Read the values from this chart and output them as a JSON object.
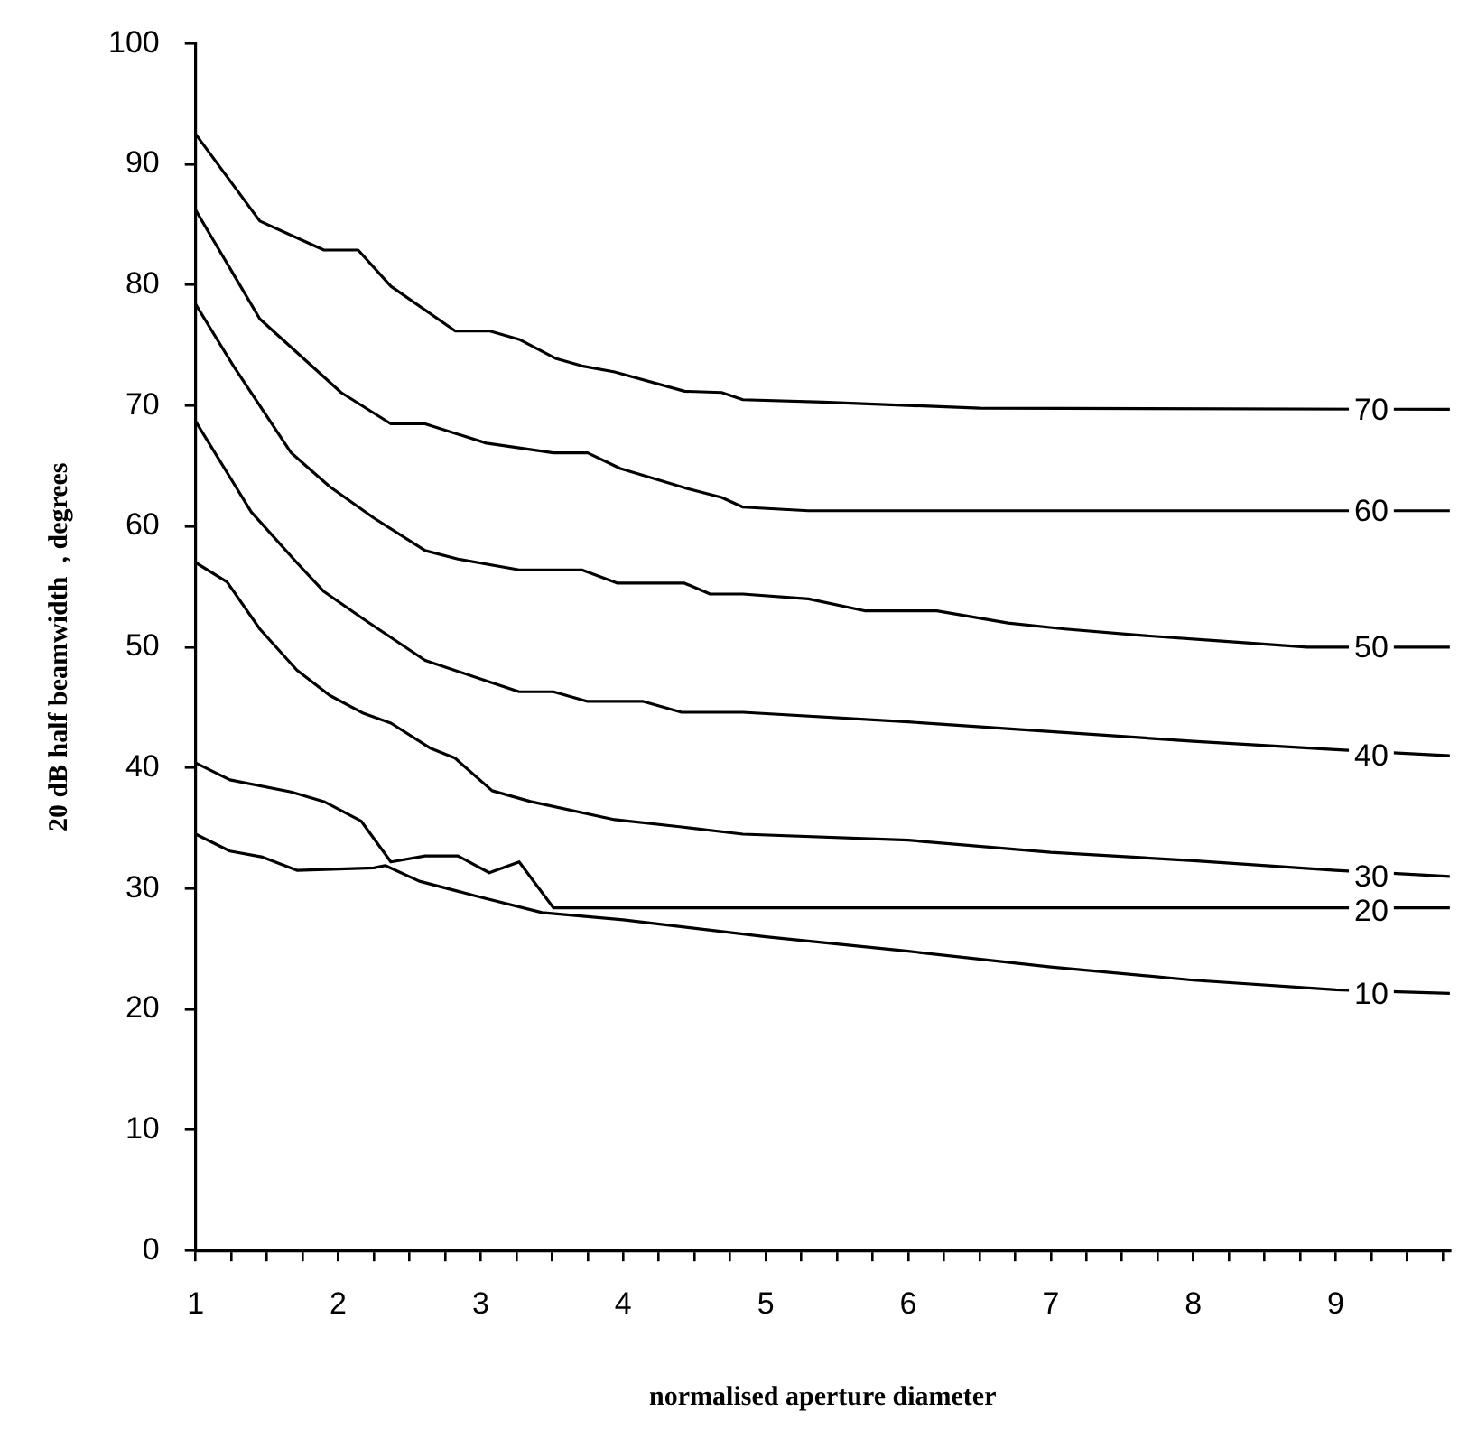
{
  "chart_data": {
    "type": "line",
    "xlabel": "normalised aperture diameter",
    "ylabel": "20 dB half beamwidth  , degrees",
    "xlim": [
      1,
      9.8
    ],
    "ylim": [
      0,
      100
    ],
    "xticks": [
      1,
      {
        "value": 1.25,
        "label": null
      },
      {
        "value": 1.5,
        "label": null
      },
      {
        "value": 1.75,
        "label": null
      },
      2,
      {
        "value": 2.25,
        "label": null
      },
      {
        "value": 2.5,
        "label": null
      },
      {
        "value": 2.75,
        "label": null
      },
      3,
      {
        "value": 3.25,
        "label": null
      },
      {
        "value": 3.5,
        "label": null
      },
      {
        "value": 3.75,
        "label": null
      },
      4,
      {
        "value": 4.25,
        "label": null
      },
      {
        "value": 4.5,
        "label": null
      },
      {
        "value": 4.75,
        "label": null
      },
      5,
      {
        "value": 5.25,
        "label": null
      },
      {
        "value": 5.5,
        "label": null
      },
      {
        "value": 5.75,
        "label": null
      },
      6,
      {
        "value": 6.25,
        "label": null
      },
      {
        "value": 6.5,
        "label": null
      },
      {
        "value": 6.75,
        "label": null
      },
      7,
      {
        "value": 7.25,
        "label": null
      },
      {
        "value": 7.5,
        "label": null
      },
      {
        "value": 7.75,
        "label": null
      },
      8,
      {
        "value": 8.25,
        "label": null
      },
      {
        "value": 8.5,
        "label": null
      },
      {
        "value": 8.75,
        "label": null
      },
      9,
      {
        "value": 9.25,
        "label": null
      },
      {
        "value": 9.5,
        "label": null
      },
      {
        "value": 9.75,
        "label": null
      }
    ],
    "yticks": [
      0,
      10,
      20,
      30,
      40,
      50,
      60,
      70,
      80,
      90,
      100
    ],
    "grid": false,
    "legend": false,
    "marker": "none",
    "line_style": "solid",
    "series": [
      {
        "name": "70",
        "color": "#000000",
        "x": [
          1,
          1.45,
          1.9,
          2.14,
          2.37,
          2.82,
          3.06,
          3.27,
          3.53,
          3.71,
          3.94,
          4.43,
          4.69,
          4.84,
          5.4,
          6.5,
          9.8
        ],
        "values": [
          92.5,
          85.3,
          82.9,
          82.9,
          79.9,
          76.2,
          76.2,
          75.5,
          73.9,
          73.3,
          72.8,
          71.2,
          71.1,
          70.5,
          70.3,
          69.8,
          69.7
        ]
      },
      {
        "name": "60",
        "color": "#000000",
        "x": [
          1,
          1.45,
          2.02,
          2.37,
          2.61,
          3.04,
          3.51,
          3.75,
          3.98,
          4.43,
          4.69,
          4.84,
          5.3,
          9.8
        ],
        "values": [
          86.2,
          77.2,
          71.1,
          68.5,
          68.5,
          66.9,
          66.1,
          66.1,
          64.8,
          63.2,
          62.4,
          61.6,
          61.3,
          61.3
        ]
      },
      {
        "name": "50",
        "color": "#000000",
        "x": [
          1,
          1.27,
          1.67,
          1.94,
          2.25,
          2.61,
          2.84,
          3.27,
          3.71,
          3.96,
          4.43,
          4.61,
          4.84,
          5.3,
          5.7,
          6.2,
          6.7,
          7.1,
          7.6,
          8.2,
          8.8,
          9.8
        ],
        "values": [
          78.4,
          73.2,
          66.1,
          63.3,
          60.7,
          58,
          57.3,
          56.4,
          56.4,
          55.3,
          55.3,
          54.4,
          54.4,
          54,
          53,
          53,
          52,
          51.5,
          51,
          50.5,
          50,
          50
        ]
      },
      {
        "name": "40",
        "color": "#000000",
        "x": [
          1,
          1.39,
          1.71,
          1.9,
          2.18,
          2.61,
          3.04,
          3.27,
          3.51,
          3.75,
          4.14,
          4.41,
          4.84,
          6,
          7,
          8,
          9,
          9.8
        ],
        "values": [
          68.7,
          61.2,
          57,
          54.6,
          52.3,
          48.9,
          47.2,
          46.3,
          46.3,
          45.5,
          45.5,
          44.6,
          44.6,
          43.8,
          43,
          42.2,
          41.5,
          41
        ]
      },
      {
        "name": "30",
        "color": "#000000",
        "x": [
          1,
          1.22,
          1.45,
          1.71,
          1.94,
          2.18,
          2.37,
          2.65,
          2.82,
          3.08,
          3.35,
          3.94,
          4.41,
          4.84,
          6,
          7,
          8,
          9,
          9.8
        ],
        "values": [
          57,
          55.4,
          51.5,
          48.1,
          46,
          44.5,
          43.7,
          41.6,
          40.8,
          38.1,
          37.2,
          35.7,
          35.1,
          34.5,
          34,
          33,
          32.3,
          31.5,
          31
        ]
      },
      {
        "name": "20",
        "color": "#000000",
        "x": [
          1,
          1.24,
          1.67,
          1.9,
          2.16,
          2.37,
          2.61,
          2.84,
          3.06,
          3.27,
          3.51,
          9.8
        ],
        "values": [
          40.4,
          39,
          38,
          37.2,
          35.6,
          32.2,
          32.7,
          32.7,
          31.3,
          32.2,
          28.4,
          28.4
        ]
      },
      {
        "name": "10",
        "color": "#000000",
        "x": [
          1,
          1.24,
          1.47,
          1.71,
          2.25,
          2.33,
          2.57,
          2.96,
          3.43,
          4,
          5,
          6,
          7,
          8,
          9,
          9.8
        ],
        "values": [
          34.5,
          33.1,
          32.6,
          31.5,
          31.7,
          31.9,
          30.6,
          29.4,
          28,
          27.4,
          26,
          24.8,
          23.5,
          22.4,
          21.6,
          21.3
        ]
      }
    ]
  }
}
